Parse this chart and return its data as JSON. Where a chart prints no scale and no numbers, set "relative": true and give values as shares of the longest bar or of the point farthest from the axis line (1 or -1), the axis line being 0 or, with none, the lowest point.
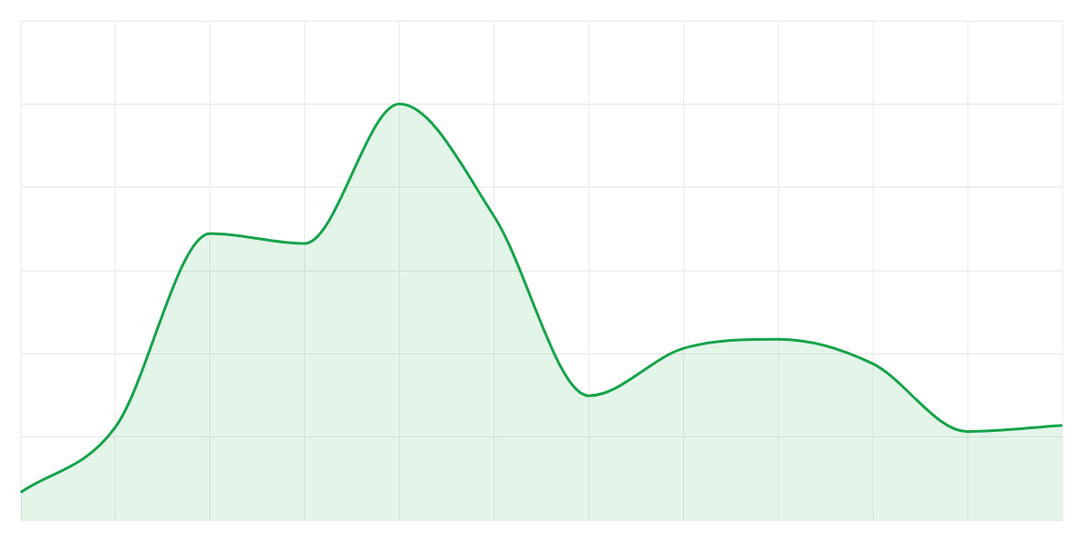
{
  "chart_data": {
    "type": "area",
    "relative": true,
    "categories": [
      null,
      null,
      null,
      null,
      null,
      null,
      null,
      null,
      null,
      null,
      null,
      null
    ],
    "series": [
      {
        "color": "#16a34a",
        "values": [
          0.067,
          0.224,
          0.689,
          0.665,
          1,
          0.73,
          0.299,
          0.413,
          0.435,
          0.376,
          0.213,
          0.228
        ]
      }
    ],
    "grid": true,
    "legend": false
  }
}
